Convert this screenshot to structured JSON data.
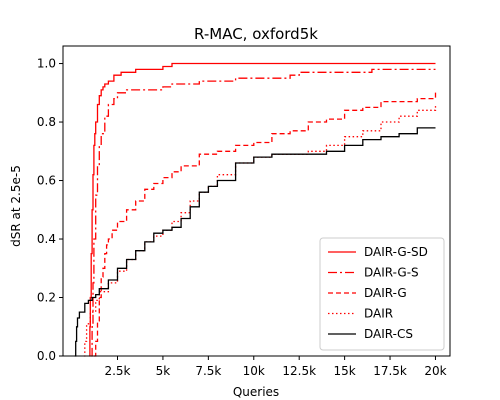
{
  "chart_data": {
    "type": "line",
    "title": "R-MAC, oxford5k",
    "xlabel": "Queries",
    "ylabel": "dSR at 2.5e-5",
    "xlim": [
      -500,
      20800
    ],
    "ylim": [
      0,
      1.06
    ],
    "xticks": [
      2500,
      5000,
      7500,
      10000,
      12500,
      15000,
      17500,
      20000
    ],
    "xtick_labels": [
      "2.5k",
      "5k",
      "7.5k",
      "10k",
      "12.5k",
      "15k",
      "17.5k",
      "20k"
    ],
    "yticks": [
      0,
      0.2,
      0.4,
      0.6,
      0.8,
      1.0
    ],
    "ytick_labels": [
      "0.0",
      "0.2",
      "0.4",
      "0.6",
      "0.8",
      "1.0"
    ],
    "legend_position": "lower-right",
    "grid": false,
    "series": [
      {
        "name": "DAIR-G-SD",
        "color": "#ff0000",
        "dash": "solid",
        "x": [
          950,
          980,
          1000,
          1050,
          1100,
          1150,
          1200,
          1250,
          1300,
          1400,
          1500,
          1600,
          1700,
          1800,
          2000,
          2300,
          2700,
          3500,
          4000,
          5000,
          5500,
          6000,
          10000,
          15000,
          20000
        ],
        "y": [
          0.0,
          0.1,
          0.2,
          0.35,
          0.5,
          0.62,
          0.72,
          0.76,
          0.8,
          0.86,
          0.89,
          0.91,
          0.92,
          0.93,
          0.94,
          0.96,
          0.97,
          0.98,
          0.98,
          0.99,
          1.0,
          1.0,
          1.0,
          1.0,
          1.0
        ]
      },
      {
        "name": "DAIR-G-S",
        "color": "#ff0000",
        "dash": "dashdot",
        "x": [
          1050,
          1100,
          1150,
          1200,
          1300,
          1400,
          1500,
          1600,
          1800,
          2000,
          2300,
          2500,
          3000,
          4000,
          5000,
          5500,
          6000,
          7000,
          8000,
          9000,
          10000,
          11000,
          12000,
          12500,
          13000,
          15000,
          16500,
          17000,
          20000
        ],
        "y": [
          0.0,
          0.1,
          0.25,
          0.4,
          0.55,
          0.65,
          0.72,
          0.76,
          0.82,
          0.86,
          0.88,
          0.9,
          0.91,
          0.91,
          0.92,
          0.93,
          0.93,
          0.94,
          0.94,
          0.95,
          0.95,
          0.95,
          0.96,
          0.97,
          0.97,
          0.97,
          0.98,
          0.98,
          0.98
        ]
      },
      {
        "name": "DAIR-G",
        "color": "#ff0000",
        "dash": "dashed",
        "x": [
          1200,
          1300,
          1400,
          1500,
          1600,
          1700,
          1800,
          1900,
          2000,
          2200,
          2500,
          3000,
          3500,
          4000,
          4500,
          5000,
          5500,
          6000,
          7000,
          8000,
          9000,
          10000,
          11000,
          12000,
          13000,
          14000,
          15000,
          16000,
          17000,
          18000,
          19000,
          20000
        ],
        "y": [
          0.0,
          0.05,
          0.12,
          0.2,
          0.27,
          0.3,
          0.35,
          0.38,
          0.4,
          0.43,
          0.46,
          0.5,
          0.53,
          0.57,
          0.59,
          0.61,
          0.63,
          0.65,
          0.69,
          0.7,
          0.72,
          0.73,
          0.76,
          0.77,
          0.8,
          0.81,
          0.84,
          0.85,
          0.87,
          0.87,
          0.88,
          0.91
        ]
      },
      {
        "name": "DAIR",
        "color": "#ff0000",
        "dash": "dotted",
        "x": [
          650,
          700,
          800,
          1000,
          1300,
          1500,
          2000,
          2500,
          3000,
          3500,
          4000,
          4500,
          5000,
          5500,
          6000,
          6500,
          7000,
          7500,
          8000,
          9000,
          10000,
          11000,
          12000,
          13000,
          14000,
          15000,
          16000,
          17000,
          18000,
          19000,
          20000
        ],
        "y": [
          0.0,
          0.05,
          0.11,
          0.15,
          0.19,
          0.22,
          0.25,
          0.29,
          0.33,
          0.36,
          0.39,
          0.41,
          0.43,
          0.46,
          0.49,
          0.53,
          0.56,
          0.58,
          0.62,
          0.66,
          0.68,
          0.69,
          0.69,
          0.7,
          0.72,
          0.75,
          0.77,
          0.8,
          0.82,
          0.84,
          0.86
        ]
      },
      {
        "name": "DAIR-CS",
        "color": "#000000",
        "dash": "solid",
        "x": [
          150,
          200,
          250,
          300,
          400,
          500,
          700,
          900,
          1100,
          1300,
          1500,
          2000,
          2500,
          3000,
          3500,
          4000,
          4500,
          5000,
          5500,
          6000,
          6500,
          7000,
          7500,
          8000,
          9000,
          10000,
          11000,
          12000,
          13000,
          14000,
          15000,
          16000,
          17000,
          18000,
          19000,
          20000
        ],
        "y": [
          0.0,
          0.05,
          0.1,
          0.13,
          0.15,
          0.15,
          0.18,
          0.19,
          0.2,
          0.21,
          0.23,
          0.26,
          0.3,
          0.33,
          0.36,
          0.39,
          0.42,
          0.43,
          0.44,
          0.47,
          0.51,
          0.56,
          0.58,
          0.6,
          0.66,
          0.68,
          0.69,
          0.69,
          0.69,
          0.7,
          0.72,
          0.74,
          0.75,
          0.76,
          0.78,
          0.78
        ]
      }
    ]
  }
}
